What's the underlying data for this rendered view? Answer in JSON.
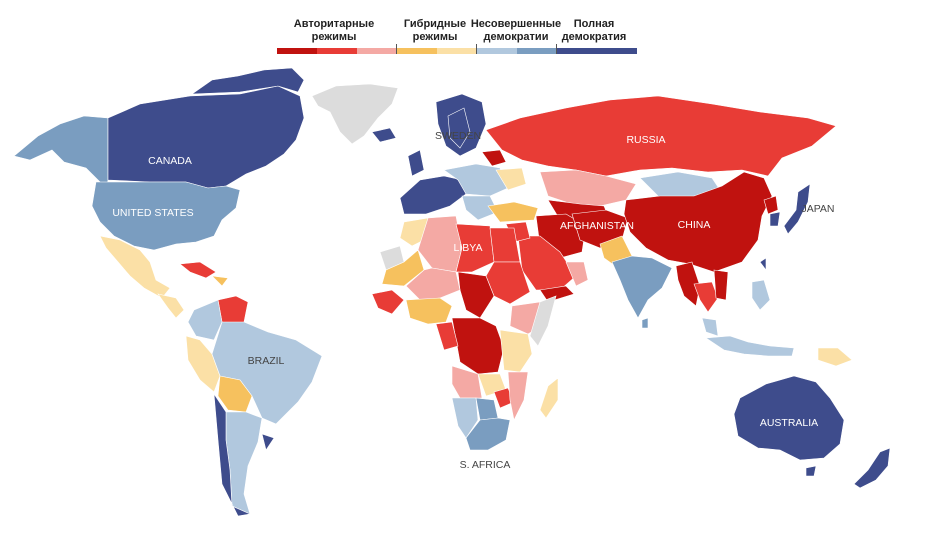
{
  "legend": {
    "categories": [
      {
        "label": "Авторитарные режимы",
        "line1": "Авторитарные",
        "line2": "режимы"
      },
      {
        "label": "Гибридные режимы",
        "line1": "Гибридные",
        "line2": "режимы"
      },
      {
        "label": "Несовершенные демократии",
        "line1": "Несовершенные",
        "line2": "демократии"
      },
      {
        "label": "Полная демократия",
        "line1": "Полная",
        "line2": "демократия"
      }
    ],
    "colors": [
      "#c0120f",
      "#e83c36",
      "#f4a9a4",
      "#f6c15e",
      "#fbe0a6",
      "#b1c8de",
      "#7a9dc0",
      "#3e4c8c"
    ]
  },
  "palette": {
    "authoritarian_dark": "#c0120f",
    "authoritarian_mid": "#e83c36",
    "authoritarian_light": "#f4a9a4",
    "hybrid_dark": "#f6c15e",
    "hybrid_light": "#fbe0a6",
    "flawed_light": "#b1c8de",
    "flawed_dark": "#7a9dc0",
    "full": "#3e4c8c",
    "no_data": "#dcdcdc"
  },
  "labels": {
    "canada": "CANADA",
    "united_states": "UNITED STATES",
    "brazil": "BRAZIL",
    "sweden": "SWEDEN",
    "russia": "RUSSIA",
    "libya": "LIBYA",
    "afghanistan": "AFGHANISTAN",
    "china": "CHINA",
    "japan": "JAPAN",
    "south_africa": "S. AFRICA",
    "australia": "AUSTRALIA"
  }
}
